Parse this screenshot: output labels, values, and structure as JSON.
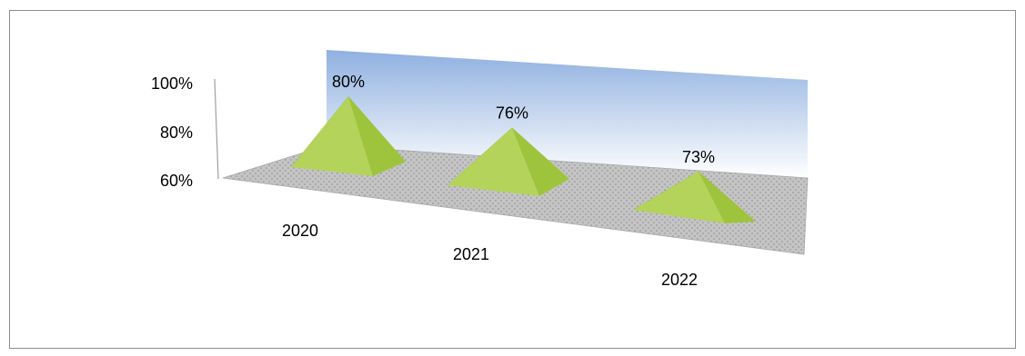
{
  "chart_data": {
    "type": "bar",
    "bar_shape": "3d-pyramid",
    "categories": [
      "2020",
      "2021",
      "2022"
    ],
    "values": [
      0.8,
      0.76,
      0.73
    ],
    "data_labels": [
      "80%",
      "76%",
      "73%"
    ],
    "yticks": [
      "60%",
      "80%",
      "100%"
    ],
    "ylim": [
      0.6,
      1.0
    ],
    "colors": {
      "pyramid_light": "#b4d35a",
      "pyramid_mid": "#9ec43e",
      "pyramid_dark": "#5f8a1e",
      "back_wall_top": "#8fb0e0",
      "back_wall_bottom": "#ffffff",
      "floor": "#c4c4c4",
      "frame": "#8c8c8c"
    },
    "grid": false,
    "legend": "none"
  }
}
